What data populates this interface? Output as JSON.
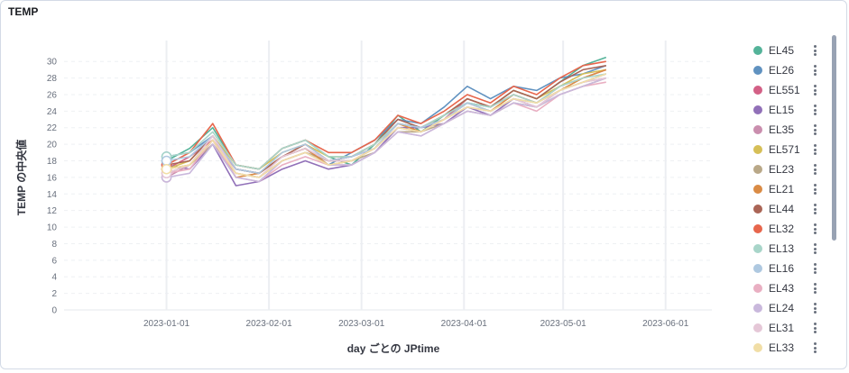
{
  "panel": {
    "title": "TEMP"
  },
  "chart_data": {
    "type": "line",
    "xlabel": "day ごとの JPtime",
    "ylabel": "TEMP の中央値",
    "x_ticks": [
      "2023-01-01",
      "2023-02-01",
      "2023-03-01",
      "2023-04-01",
      "2023-05-01",
      "2023-06-01"
    ],
    "y_ticks": [
      0,
      2,
      4,
      6,
      8,
      10,
      12,
      14,
      16,
      18,
      20,
      22,
      24,
      26,
      28,
      30
    ],
    "xlim": [
      "2022-12-01",
      "2023-06-15"
    ],
    "ylim": [
      0,
      31
    ],
    "grid": true,
    "legend_position": "right",
    "x_dates": [
      "2023-01-01",
      "2023-01-08",
      "2023-01-15",
      "2023-01-22",
      "2023-01-29",
      "2023-02-05",
      "2023-02-12",
      "2023-02-19",
      "2023-02-26",
      "2023-03-05",
      "2023-03-12",
      "2023-03-19",
      "2023-03-26",
      "2023-04-02",
      "2023-04-09",
      "2023-04-16",
      "2023-04-23",
      "2023-04-30",
      "2023-05-07",
      "2023-05-14"
    ],
    "series": [
      {
        "name": "EL45",
        "color": "#54b399",
        "values": [
          18.0,
          19.5,
          22.0,
          17.5,
          17.0,
          19.5,
          20.5,
          18.5,
          17.5,
          20.0,
          23.5,
          21.5,
          23.5,
          25.0,
          24.5,
          26.5,
          25.5,
          27.5,
          29.5,
          30.5
        ]
      },
      {
        "name": "EL26",
        "color": "#6092c0",
        "values": [
          18.5,
          19.0,
          21.0,
          17.0,
          16.5,
          18.5,
          19.5,
          17.5,
          19.0,
          20.5,
          23.0,
          22.5,
          24.5,
          27.0,
          25.5,
          27.0,
          26.5,
          28.0,
          28.5,
          29.5
        ]
      },
      {
        "name": "EL551",
        "color": "#d36086",
        "values": [
          17.0,
          18.5,
          20.5,
          16.5,
          16.0,
          18.0,
          19.0,
          18.0,
          18.5,
          19.5,
          22.5,
          22.0,
          23.0,
          25.5,
          24.5,
          26.0,
          25.0,
          27.0,
          28.0,
          29.0
        ]
      },
      {
        "name": "EL15",
        "color": "#9170b8",
        "values": [
          17.5,
          17.0,
          20.0,
          15.0,
          15.5,
          17.0,
          18.0,
          17.0,
          17.5,
          19.0,
          22.0,
          22.0,
          22.5,
          24.5,
          23.5,
          25.5,
          24.5,
          26.5,
          27.5,
          28.5
        ]
      },
      {
        "name": "EL35",
        "color": "#ca8eae",
        "values": [
          16.0,
          17.5,
          20.5,
          17.0,
          16.5,
          18.5,
          19.5,
          18.0,
          18.0,
          19.5,
          22.0,
          21.5,
          23.0,
          24.5,
          24.0,
          25.5,
          25.0,
          26.5,
          27.5,
          28.0
        ]
      },
      {
        "name": "EL571",
        "color": "#d6bf57",
        "values": [
          17.0,
          18.0,
          21.0,
          17.5,
          17.0,
          19.0,
          20.0,
          18.5,
          18.5,
          20.0,
          22.5,
          22.0,
          23.5,
          25.5,
          24.5,
          26.5,
          25.5,
          27.0,
          28.5,
          29.0
        ]
      },
      {
        "name": "EL23",
        "color": "#b9a888",
        "values": [
          16.5,
          17.5,
          20.0,
          16.5,
          16.0,
          18.0,
          19.0,
          18.0,
          18.0,
          19.0,
          21.5,
          21.5,
          22.5,
          24.0,
          23.5,
          25.0,
          24.5,
          26.0,
          27.0,
          28.0
        ]
      },
      {
        "name": "EL21",
        "color": "#da8b45",
        "values": [
          17.0,
          17.5,
          20.5,
          16.0,
          16.5,
          18.5,
          19.5,
          17.5,
          18.0,
          19.5,
          22.5,
          21.5,
          23.0,
          25.0,
          24.0,
          26.0,
          25.0,
          26.5,
          28.0,
          29.0
        ]
      },
      {
        "name": "EL44",
        "color": "#aa6556",
        "values": [
          17.5,
          18.0,
          21.0,
          17.0,
          16.5,
          18.5,
          20.0,
          18.0,
          18.5,
          20.0,
          23.0,
          22.0,
          23.5,
          25.5,
          24.5,
          26.5,
          25.5,
          27.5,
          29.0,
          29.5
        ]
      },
      {
        "name": "EL32",
        "color": "#e7664c",
        "values": [
          17.5,
          19.0,
          22.5,
          17.5,
          17.0,
          19.5,
          20.5,
          19.0,
          19.0,
          20.5,
          23.5,
          22.5,
          24.0,
          26.0,
          25.0,
          27.0,
          26.0,
          28.0,
          29.5,
          30.0
        ]
      },
      {
        "name": "EL13",
        "color": "#a8d5c9",
        "values": [
          18.5,
          19.0,
          21.5,
          17.5,
          17.0,
          19.5,
          20.5,
          18.5,
          18.5,
          20.0,
          22.5,
          22.0,
          23.5,
          25.0,
          24.5,
          26.0,
          25.0,
          27.0,
          28.0,
          28.5
        ]
      },
      {
        "name": "EL16",
        "color": "#aec8e0",
        "values": [
          18.0,
          18.5,
          21.0,
          17.0,
          16.5,
          19.0,
          20.0,
          18.0,
          18.5,
          19.5,
          22.5,
          22.0,
          23.0,
          25.0,
          24.0,
          25.5,
          25.0,
          26.5,
          27.5,
          28.5
        ]
      },
      {
        "name": "EL43",
        "color": "#e9afc2",
        "values": [
          16.5,
          17.0,
          20.5,
          16.0,
          15.5,
          17.5,
          18.5,
          17.5,
          17.5,
          19.0,
          21.5,
          21.0,
          22.5,
          24.0,
          23.5,
          25.0,
          24.0,
          26.0,
          27.0,
          27.5
        ]
      },
      {
        "name": "EL24",
        "color": "#c9b8dc",
        "values": [
          16.0,
          16.5,
          20.0,
          16.0,
          15.5,
          18.0,
          19.0,
          17.5,
          17.5,
          19.0,
          21.5,
          21.0,
          22.5,
          24.0,
          23.5,
          25.0,
          24.5,
          26.0,
          27.0,
          28.0
        ]
      },
      {
        "name": "EL31",
        "color": "#e5c7d7",
        "values": [
          16.5,
          17.5,
          21.0,
          16.5,
          16.0,
          18.5,
          19.5,
          18.0,
          18.0,
          19.5,
          22.0,
          21.5,
          23.0,
          24.5,
          24.0,
          25.5,
          24.5,
          26.5,
          27.5,
          28.0
        ]
      },
      {
        "name": "EL33",
        "color": "#f1dea6",
        "values": [
          17.0,
          17.5,
          20.5,
          16.5,
          16.0,
          18.0,
          19.0,
          17.5,
          18.0,
          19.5,
          22.0,
          21.5,
          23.0,
          24.5,
          24.0,
          25.5,
          25.0,
          26.5,
          27.5,
          28.5
        ]
      }
    ]
  }
}
